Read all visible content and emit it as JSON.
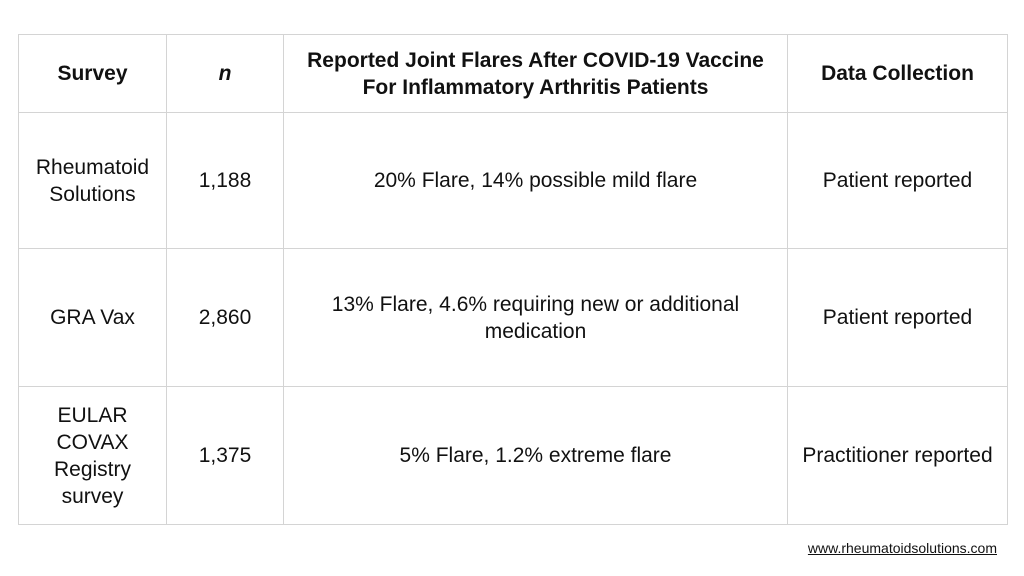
{
  "table": {
    "headers": {
      "survey": "Survey",
      "n": "n",
      "flares": "Reported Joint Flares After COVID-19 Vaccine For Inflammatory Arthritis Patients",
      "collection": "Data Collection"
    },
    "rows": [
      {
        "survey": "Rheumatoid Solutions",
        "n": "1,188",
        "flares": "20% Flare, 14% possible mild flare",
        "collection": "Patient reported"
      },
      {
        "survey": "GRA Vax",
        "n": "2,860",
        "flares": "13% Flare, 4.6% requiring new or additional medication",
        "collection": "Patient reported"
      },
      {
        "survey": "EULAR COVAX Registry survey",
        "n": "1,375",
        "flares": "5% Flare, 1.2% extreme flare",
        "collection": "Practitioner reported"
      }
    ]
  },
  "footer": {
    "website": "www.rheumatoidsolutions.com"
  }
}
